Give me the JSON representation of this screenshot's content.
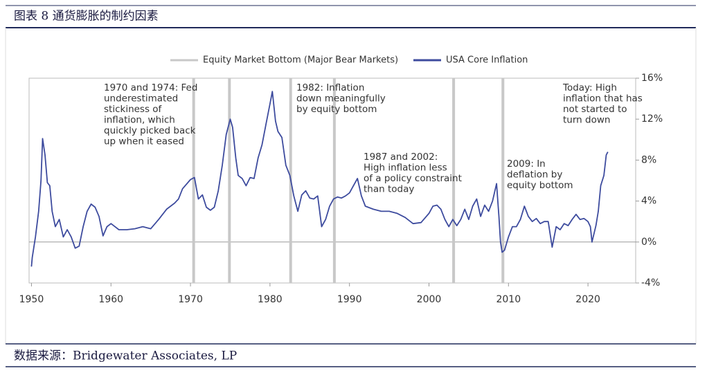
{
  "header": {
    "title": "图表 8 通货膨胀的制约因素"
  },
  "footer": {
    "source": "数据来源：Bridgewater Associates, LP"
  },
  "chart_data": {
    "type": "line",
    "y_axis_side": "right",
    "xlim": [
      1949.7,
      2026
    ],
    "ylim": [
      -4,
      16
    ],
    "xticks": [
      1950,
      1960,
      1970,
      1980,
      1990,
      2000,
      2010,
      2020
    ],
    "yticks": [
      {
        "value": -4,
        "label": "-4%"
      },
      {
        "value": 0,
        "label": "0%"
      },
      {
        "value": 4,
        "label": "4%"
      },
      {
        "value": 8,
        "label": "8%"
      },
      {
        "value": 12,
        "label": "12%"
      },
      {
        "value": 16,
        "label": "16%"
      }
    ],
    "series": [
      {
        "name": "Equity Market Bottom (Major Bear Markets)",
        "color": "#c8c8c8",
        "kind": "vline",
        "x": [
          1970.4,
          1974.9,
          1982.6,
          1988.1,
          2003.1,
          2009.3
        ]
      },
      {
        "name": "USA Core Inflation",
        "color": "#3d4b9e",
        "kind": "line",
        "x": [
          1950,
          1950.1,
          1950.5,
          1950.9,
          1951.2,
          1951.4,
          1951.7,
          1952,
          1952.3,
          1952.6,
          1953,
          1953.5,
          1954,
          1954.5,
          1955,
          1955.5,
          1956,
          1956.5,
          1957,
          1957.5,
          1958,
          1958.5,
          1959,
          1959.5,
          1960,
          1960.5,
          1961,
          1962,
          1963,
          1964,
          1965,
          1966,
          1967,
          1968,
          1968.5,
          1969,
          1970,
          1970.5,
          1971,
          1971.5,
          1972,
          1972.5,
          1973,
          1973.5,
          1974,
          1974.5,
          1975,
          1975.3,
          1975.7,
          1976,
          1976.5,
          1977,
          1977.5,
          1978,
          1978.5,
          1979,
          1979.5,
          1980,
          1980.3,
          1980.7,
          1981,
          1981.5,
          1982,
          1982.5,
          1983,
          1983.5,
          1984,
          1984.5,
          1985,
          1985.5,
          1986,
          1986.5,
          1987,
          1987.5,
          1988,
          1988.5,
          1989,
          1989.5,
          1990,
          1990.5,
          1991,
          1991.5,
          1992,
          1993,
          1994,
          1995,
          1996,
          1997,
          1998,
          1999,
          2000,
          2000.5,
          2001,
          2001.5,
          2002,
          2002.5,
          2003,
          2003.5,
          2004,
          2004.5,
          2005,
          2005.5,
          2006,
          2006.5,
          2007,
          2007.5,
          2008,
          2008.5,
          2008.8,
          2009,
          2009.2,
          2009.5,
          2010,
          2010.5,
          2011,
          2011.5,
          2012,
          2012.5,
          2013,
          2013.5,
          2014,
          2014.5,
          2015,
          2015.5,
          2016,
          2016.5,
          2017,
          2017.5,
          2018,
          2018.5,
          2019,
          2019.5,
          2020,
          2020.3,
          2020.5,
          2021,
          2021.3,
          2021.6,
          2022,
          2022.3,
          2022.5
        ],
        "values": [
          -2.4,
          -1.5,
          0.5,
          3,
          6,
          10.1,
          8.5,
          5.8,
          5.5,
          3,
          1.5,
          2.2,
          0.5,
          1.2,
          0.5,
          -0.6,
          -0.4,
          1.5,
          3,
          3.7,
          3.4,
          2.5,
          0.6,
          1.5,
          1.8,
          1.5,
          1.2,
          1.2,
          1.3,
          1.5,
          1.3,
          2.2,
          3.2,
          3.8,
          4.2,
          5.2,
          6.1,
          6.3,
          4.2,
          4.6,
          3.4,
          3.1,
          3.4,
          5,
          7.5,
          10.5,
          12,
          11.2,
          8.2,
          6.5,
          6.2,
          5.5,
          6.3,
          6.2,
          8.2,
          9.5,
          11.5,
          13.5,
          14.7,
          11.8,
          10.8,
          10.2,
          7.5,
          6.5,
          4.5,
          3,
          4.6,
          5,
          4.3,
          4.2,
          4.5,
          1.5,
          2.2,
          3.5,
          4.2,
          4.4,
          4.3,
          4.5,
          4.8,
          5.5,
          6.2,
          4.5,
          3.5,
          3.2,
          3,
          3,
          2.8,
          2.4,
          1.8,
          1.9,
          2.8,
          3.5,
          3.6,
          3.2,
          2.2,
          1.5,
          2.2,
          1.6,
          2.2,
          3.2,
          2.2,
          3.5,
          4.2,
          2.5,
          3.6,
          3,
          4,
          5.7,
          2.5,
          0,
          -1,
          -0.8,
          0.5,
          1.5,
          1.5,
          2.2,
          3.5,
          2.5,
          2,
          2.3,
          1.8,
          2,
          2,
          -0.5,
          1.5,
          1.2,
          1.8,
          1.6,
          2.2,
          2.7,
          2.2,
          2.3,
          2,
          1.5,
          0,
          1.6,
          3,
          5.5,
          6.5,
          8.5,
          8.8
        ]
      }
    ],
    "annotations": [
      [
        "1970 and 1974: Fed",
        "underestimated",
        "stickiness of",
        "inflation, which",
        "quickly picked back",
        "up when it eased"
      ],
      [
        "1982: Inflation",
        "down meaningfully",
        "by equity bottom"
      ],
      [
        "1987 and 2002:",
        "High inflation less",
        "of a policy constraint",
        "than today"
      ],
      [
        "2009: In",
        "deflation by",
        "equity bottom"
      ],
      [
        "Today: High",
        "inflation that has",
        "not started to",
        "turn down"
      ]
    ]
  }
}
